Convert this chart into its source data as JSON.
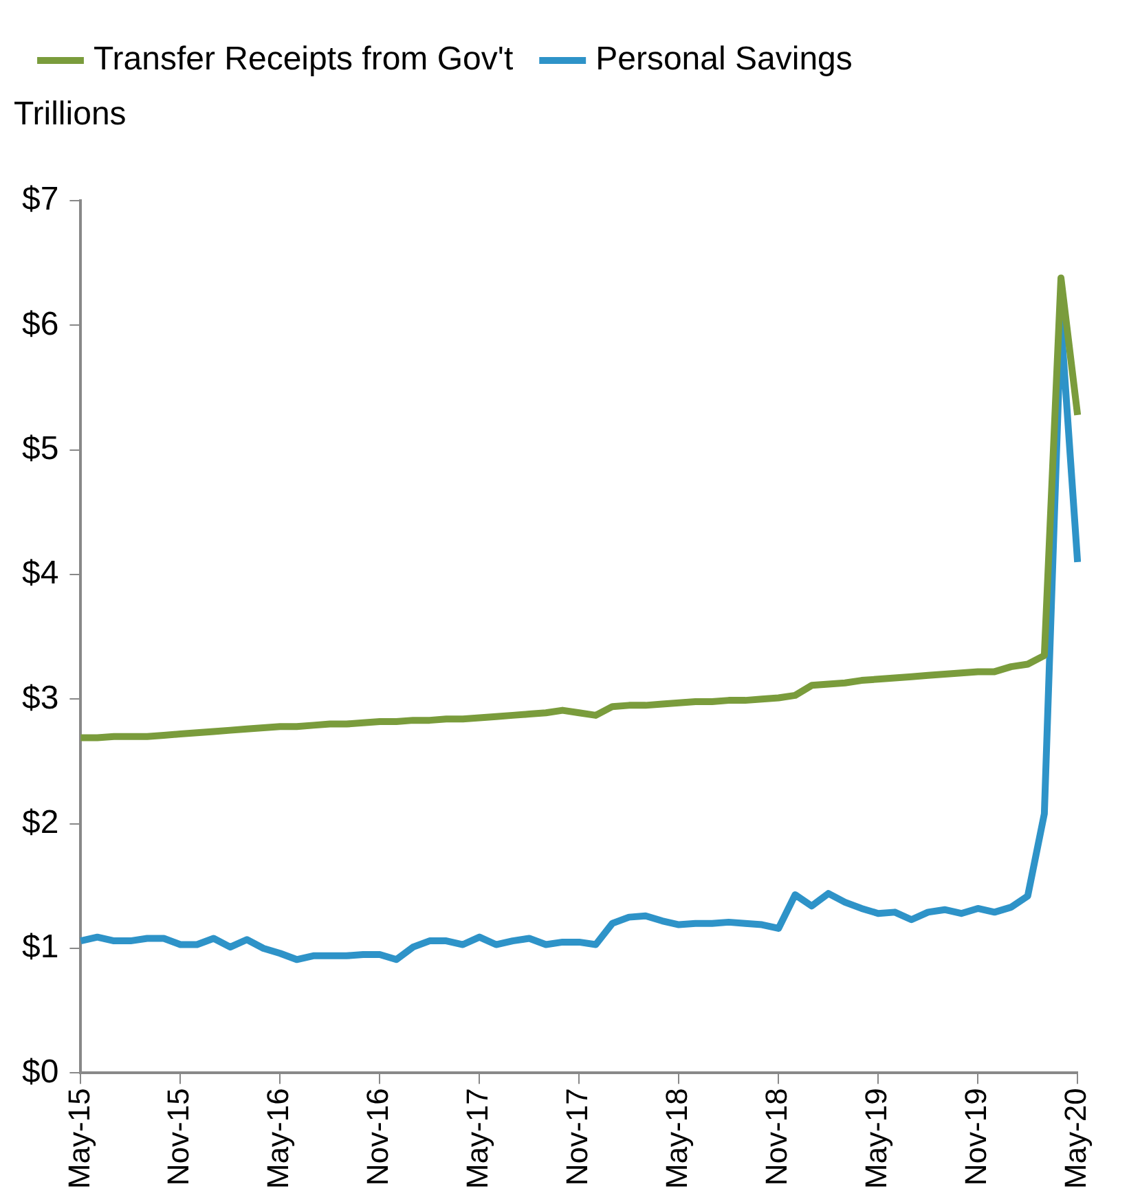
{
  "chart_data": {
    "type": "line",
    "ylabel": "Trillions",
    "categories": [
      "May-15",
      null,
      null,
      null,
      null,
      null,
      "Nov-15",
      null,
      null,
      null,
      null,
      null,
      "May-16",
      null,
      null,
      null,
      null,
      null,
      "Nov-16",
      null,
      null,
      null,
      null,
      null,
      "May-17",
      null,
      null,
      null,
      null,
      null,
      "Nov-17",
      null,
      null,
      null,
      null,
      null,
      "May-18",
      null,
      null,
      null,
      null,
      null,
      "Nov-18",
      null,
      null,
      null,
      null,
      null,
      "May-19",
      null,
      null,
      null,
      null,
      null,
      "Nov-19",
      null,
      null,
      null,
      null,
      null,
      "May-20"
    ],
    "series": [
      {
        "name": "Transfer Receipts from Gov't",
        "color": "#7a9c3c",
        "values": [
          2.69,
          2.69,
          2.7,
          2.7,
          2.7,
          2.71,
          2.72,
          2.73,
          2.74,
          2.75,
          2.76,
          2.77,
          2.78,
          2.78,
          2.79,
          2.8,
          2.8,
          2.81,
          2.82,
          2.82,
          2.83,
          2.83,
          2.84,
          2.84,
          2.85,
          2.86,
          2.87,
          2.88,
          2.89,
          2.91,
          2.89,
          2.87,
          2.94,
          2.95,
          2.95,
          2.96,
          2.97,
          2.98,
          2.98,
          2.99,
          2.99,
          3.0,
          3.01,
          3.03,
          3.11,
          3.12,
          3.13,
          3.15,
          3.16,
          3.17,
          3.18,
          3.19,
          3.2,
          3.21,
          3.22,
          3.22,
          3.26,
          3.28,
          3.35,
          6.38,
          5.28
        ]
      },
      {
        "name": "Personal Savings",
        "color": "#2e93c8",
        "values": [
          1.06,
          1.09,
          1.06,
          1.06,
          1.08,
          1.08,
          1.03,
          1.03,
          1.08,
          1.01,
          1.07,
          1.0,
          0.96,
          0.91,
          0.94,
          0.94,
          0.94,
          0.95,
          0.95,
          0.91,
          1.01,
          1.06,
          1.06,
          1.03,
          1.09,
          1.03,
          1.06,
          1.08,
          1.03,
          1.05,
          1.05,
          1.03,
          1.2,
          1.25,
          1.26,
          1.22,
          1.19,
          1.2,
          1.2,
          1.21,
          1.2,
          1.19,
          1.16,
          1.43,
          1.34,
          1.44,
          1.37,
          1.32,
          1.28,
          1.29,
          1.23,
          1.29,
          1.31,
          1.28,
          1.32,
          1.29,
          1.33,
          1.42,
          2.08,
          6.03,
          4.1
        ]
      }
    ],
    "ylim": [
      0,
      7
    ],
    "yticks": [
      {
        "value": 0,
        "label": "$0"
      },
      {
        "value": 1,
        "label": "$1"
      },
      {
        "value": 2,
        "label": "$2"
      },
      {
        "value": 3,
        "label": "$3"
      },
      {
        "value": 4,
        "label": "$4"
      },
      {
        "value": 5,
        "label": "$5"
      },
      {
        "value": 6,
        "label": "$6"
      },
      {
        "value": 7,
        "label": "$7"
      }
    ],
    "grid": false,
    "legend": "top left",
    "marker": "none",
    "line_style": "solid"
  }
}
